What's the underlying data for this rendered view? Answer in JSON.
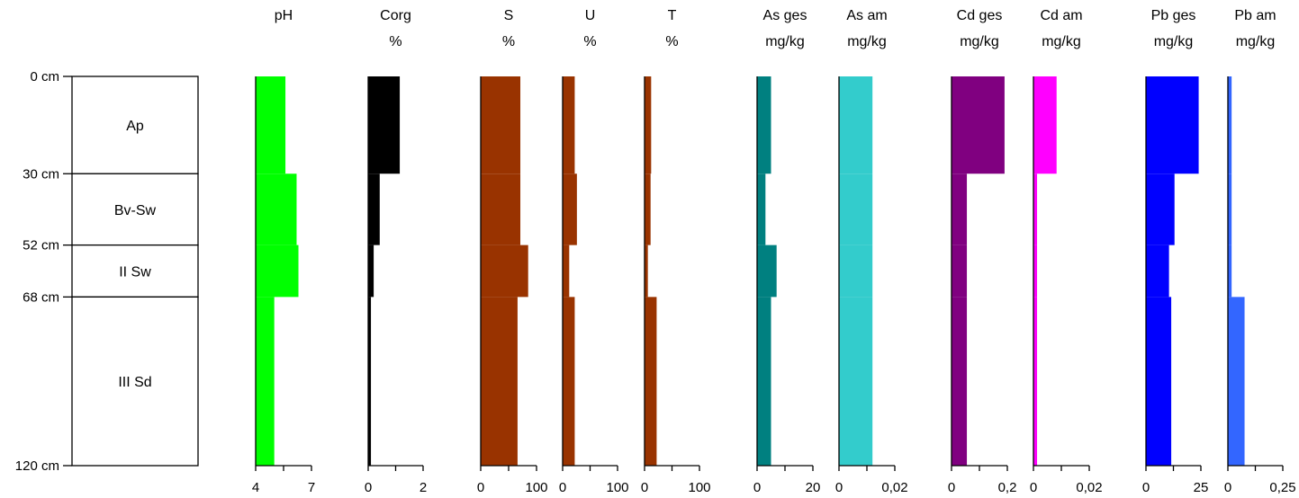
{
  "chart_data": {
    "type": "bar",
    "title": "",
    "depth_unit": "cm",
    "depth_range": [
      0,
      120
    ],
    "depths": [
      {
        "value": 0,
        "label": "0 cm"
      },
      {
        "value": 30,
        "label": "30 cm"
      },
      {
        "value": 52,
        "label": "52 cm"
      },
      {
        "value": 68,
        "label": "68 cm"
      },
      {
        "value": 120,
        "label": "120 cm"
      }
    ],
    "horizons": [
      {
        "name": "Ap",
        "top": 0,
        "bottom": 30
      },
      {
        "name": "Bv-Sw",
        "top": 30,
        "bottom": 52
      },
      {
        "name": "II Sw",
        "top": 52,
        "bottom": 68
      },
      {
        "name": "III Sd",
        "top": 68,
        "bottom": 120
      }
    ],
    "series": [
      {
        "name": "pH",
        "unit": "",
        "color": "#00ff00",
        "xmin": 4,
        "xmax": 7,
        "ticks": [
          {
            "v": 4,
            "label": "4"
          },
          {
            "v": 5.5,
            "label": ""
          },
          {
            "v": 7,
            "label": "7"
          }
        ],
        "values": [
          5.6,
          6.2,
          6.3,
          5.0
        ]
      },
      {
        "name": "Corg",
        "unit": "%",
        "color": "#000000",
        "xmin": 0,
        "xmax": 2,
        "ticks": [
          {
            "v": 0,
            "label": "0"
          },
          {
            "v": 1,
            "label": ""
          },
          {
            "v": 2,
            "label": "2"
          }
        ],
        "values": [
          1.15,
          0.42,
          0.2,
          0.1
        ]
      },
      {
        "name": "S",
        "unit": "%",
        "color": "#993300",
        "xmin": 0,
        "xmax": 100,
        "ticks": [
          {
            "v": 0,
            "label": "0"
          },
          {
            "v": 50,
            "label": ""
          },
          {
            "v": 100,
            "label": "100"
          }
        ],
        "values": [
          71,
          71,
          85,
          66
        ]
      },
      {
        "name": "U",
        "unit": "%",
        "color": "#993300",
        "xmin": 0,
        "xmax": 100,
        "ticks": [
          {
            "v": 0,
            "label": "0"
          },
          {
            "v": 50,
            "label": ""
          },
          {
            "v": 100,
            "label": "100"
          }
        ],
        "values": [
          22,
          26,
          12,
          22
        ]
      },
      {
        "name": "T",
        "unit": "%",
        "color": "#993300",
        "xmin": 0,
        "xmax": 100,
        "ticks": [
          {
            "v": 0,
            "label": "0"
          },
          {
            "v": 50,
            "label": ""
          },
          {
            "v": 100,
            "label": "100"
          }
        ],
        "values": [
          12,
          11,
          6,
          22
        ]
      },
      {
        "name": "As ges",
        "unit": "mg/kg",
        "color": "#008080",
        "xmin": 0,
        "xmax": 20,
        "ticks": [
          {
            "v": 0,
            "label": "0"
          },
          {
            "v": 10,
            "label": ""
          },
          {
            "v": 20,
            "label": "20"
          }
        ],
        "values": [
          5.0,
          3.0,
          7.0,
          5.0
        ]
      },
      {
        "name": "As am",
        "unit": "mg/kg",
        "color": "#33cccc",
        "xmin": 0,
        "xmax": 0.02,
        "ticks": [
          {
            "v": 0,
            "label": "0"
          },
          {
            "v": 0.01,
            "label": ""
          },
          {
            "v": 0.02,
            "label": "0,02"
          }
        ],
        "values": [
          0.012,
          0.012,
          0.012,
          0.012
        ]
      },
      {
        "name": "Cd ges",
        "unit": "mg/kg",
        "color": "#800080",
        "xmin": 0,
        "xmax": 0.2,
        "ticks": [
          {
            "v": 0,
            "label": "0"
          },
          {
            "v": 0.1,
            "label": ""
          },
          {
            "v": 0.2,
            "label": "0,2"
          }
        ],
        "values": [
          0.19,
          0.055,
          0.055,
          0.055
        ]
      },
      {
        "name": "Cd am",
        "unit": "mg/kg",
        "color": "#ff00ff",
        "xmin": 0,
        "xmax": 0.02,
        "ticks": [
          {
            "v": 0,
            "label": "0"
          },
          {
            "v": 0.01,
            "label": ""
          },
          {
            "v": 0.02,
            "label": "0,02"
          }
        ],
        "values": [
          0.0083,
          0.0013,
          0.0013,
          0.0013
        ]
      },
      {
        "name": "Pb ges",
        "unit": "mg/kg",
        "color": "#0000ff",
        "xmin": 0,
        "xmax": 25,
        "ticks": [
          {
            "v": 0,
            "label": "0"
          },
          {
            "v": 12.5,
            "label": ""
          },
          {
            "v": 25,
            "label": "25"
          }
        ],
        "values": [
          24.0,
          13.0,
          10.5,
          11.5
        ]
      },
      {
        "name": "Pb am",
        "unit": "mg/kg",
        "color": "#3366ff",
        "xmin": 0,
        "xmax": 0.25,
        "ticks": [
          {
            "v": 0,
            "label": "0"
          },
          {
            "v": 0.125,
            "label": ""
          },
          {
            "v": 0.25,
            "label": "0,25"
          }
        ],
        "values": [
          0.017,
          0.017,
          0.017,
          0.076
        ]
      }
    ]
  }
}
